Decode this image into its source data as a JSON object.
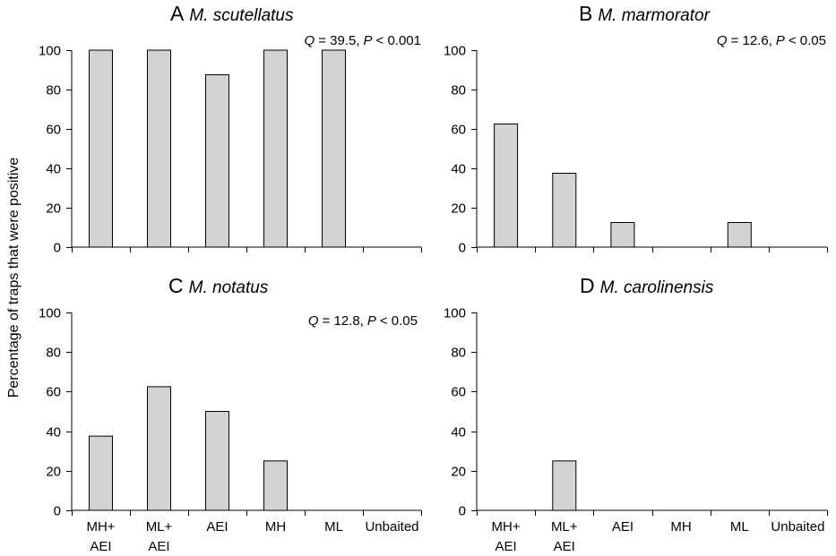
{
  "y_axis_label": "Percentage of traps that were positive",
  "chart_data": [
    {
      "type": "bar",
      "letter": "A",
      "species": "M. scutellatus",
      "stat": {
        "q_label": "Q",
        "q_value": "= 39.5,",
        "p_label": "P",
        "p_value": "< 0.001"
      },
      "categories": [
        [
          "MH+",
          "AEI"
        ],
        [
          "ML+",
          "AEI"
        ],
        [
          "AEI"
        ],
        [
          "MH"
        ],
        [
          "ML"
        ],
        [
          "Unbaited"
        ]
      ],
      "values": [
        100,
        100,
        87.5,
        100,
        100,
        0
      ],
      "show_category_labels": false,
      "ylim": [
        0,
        100
      ],
      "yticks": [
        0,
        20,
        40,
        60,
        80,
        100
      ],
      "grid": false
    },
    {
      "type": "bar",
      "letter": "B",
      "species": "M. marmorator",
      "stat": {
        "q_label": "Q",
        "q_value": "= 12.6,",
        "p_label": "P",
        "p_value": "< 0.05"
      },
      "categories": [
        [
          "MH+",
          "AEI"
        ],
        [
          "ML+",
          "AEI"
        ],
        [
          "AEI"
        ],
        [
          "MH"
        ],
        [
          "ML"
        ],
        [
          "Unbaited"
        ]
      ],
      "values": [
        62.5,
        37.5,
        12.5,
        0,
        12.5,
        0
      ],
      "show_category_labels": false,
      "ylim": [
        0,
        100
      ],
      "yticks": [
        0,
        20,
        40,
        60,
        80,
        100
      ],
      "grid": false
    },
    {
      "type": "bar",
      "letter": "C",
      "species": "M. notatus",
      "stat": {
        "q_label": "Q",
        "q_value": "= 12.8,",
        "p_label": "P",
        "p_value": "< 0.05"
      },
      "categories": [
        [
          "MH+",
          "AEI"
        ],
        [
          "ML+",
          "AEI"
        ],
        [
          "AEI"
        ],
        [
          "MH"
        ],
        [
          "ML"
        ],
        [
          "Unbaited"
        ]
      ],
      "values": [
        37.5,
        62.5,
        50,
        25,
        0,
        0
      ],
      "show_category_labels": true,
      "ylim": [
        0,
        100
      ],
      "yticks": [
        0,
        20,
        40,
        60,
        80,
        100
      ],
      "grid": false
    },
    {
      "type": "bar",
      "letter": "D",
      "species": "M. carolinensis",
      "stat": null,
      "categories": [
        [
          "MH+",
          "AEI"
        ],
        [
          "ML+",
          "AEI"
        ],
        [
          "AEI"
        ],
        [
          "MH"
        ],
        [
          "ML"
        ],
        [
          "Unbaited"
        ]
      ],
      "values": [
        0,
        25,
        0,
        0,
        0,
        0
      ],
      "show_category_labels": true,
      "ylim": [
        0,
        100
      ],
      "yticks": [
        0,
        20,
        40,
        60,
        80,
        100
      ],
      "grid": false
    }
  ]
}
